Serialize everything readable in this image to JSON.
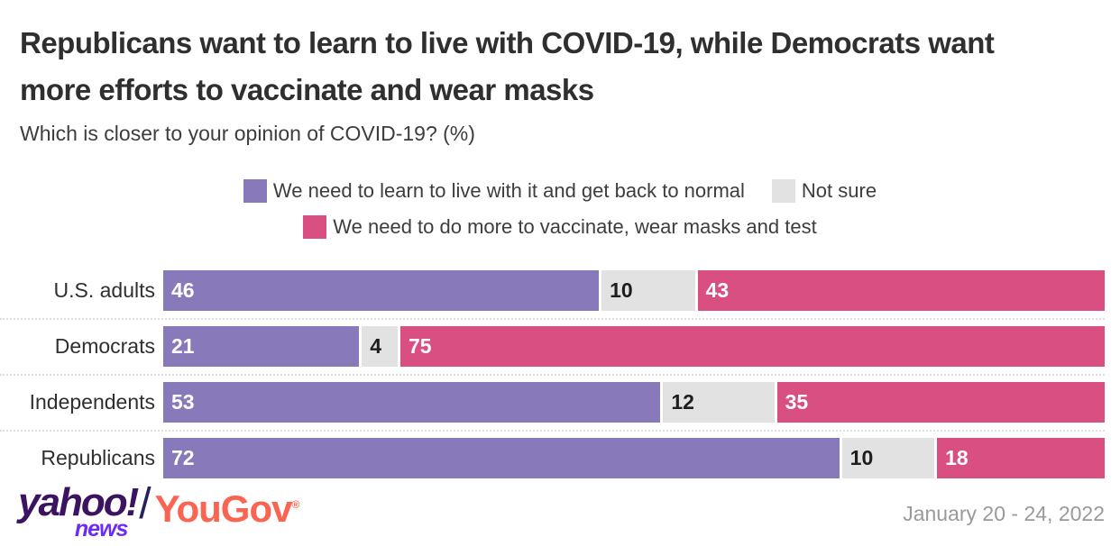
{
  "title": "Republicans want to learn to live with COVID-19, while Democrats want more efforts to vaccinate and wear masks",
  "subtitle": "Which is closer to your opinion of COVID-19? (%)",
  "colors": {
    "purple": "#8879bb",
    "not_sure_gray": "#e2e2e2",
    "pink": "#da4f82",
    "title_text": "#2f2f2f",
    "date_text": "#9a9a9a",
    "yahoo_purple": "#3c1361",
    "news_violet": "#6d2bf7",
    "slash_navy": "#262262",
    "yougov_coral": "#fa6450"
  },
  "legend": [
    {
      "label": "We need to learn to live with it and get back to normal",
      "color": "#8879bb"
    },
    {
      "label": "Not sure",
      "color": "#e2e2e2"
    },
    {
      "label": "We need to do more to vaccinate, wear masks and test",
      "color": "#da4f82"
    }
  ],
  "chart_data": {
    "type": "bar",
    "orientation": "horizontal",
    "stacked": true,
    "normalized_to_row_total": true,
    "xlim": [
      0,
      100
    ],
    "grid": false,
    "value_labels": "inside-start",
    "categories": [
      "U.S. adults",
      "Democrats",
      "Independents",
      "Republicans"
    ],
    "series": [
      {
        "name": "We need to learn to live with it and get back to normal",
        "key": "live-with-it",
        "color": "#8879bb",
        "value_text_color": "#ffffff",
        "values": [
          46,
          21,
          53,
          72
        ]
      },
      {
        "name": "Not sure",
        "key": "not-sure",
        "color": "#e2e2e2",
        "value_text_color": "#1e1e1e",
        "values": [
          10,
          4,
          12,
          10
        ]
      },
      {
        "name": "We need to do more to vaccinate, wear masks and test",
        "key": "do-more",
        "color": "#da4f82",
        "value_text_color": "#ffffff",
        "values": [
          43,
          75,
          35,
          18
        ]
      }
    ]
  },
  "footer": {
    "yahoo_text": "yahoo!",
    "news_text": "news",
    "separator": "/",
    "yougov_text": "YouGov",
    "registered": "®",
    "date_range": "January 20 - 24, 2022"
  }
}
